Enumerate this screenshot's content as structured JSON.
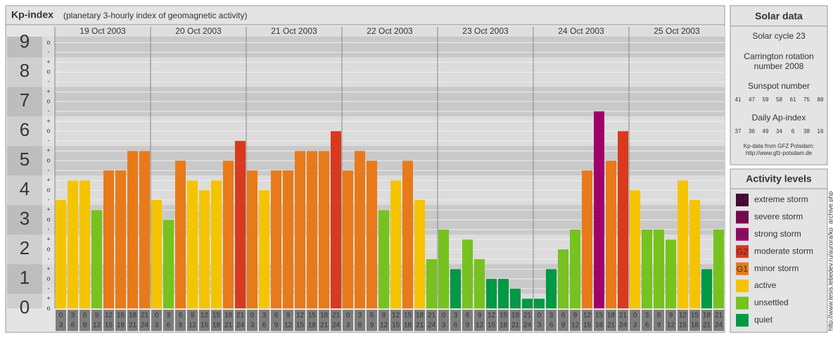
{
  "chart_data": {
    "type": "bar",
    "title": "Kp-index",
    "subtitle": "(planetary 3-hourly index of geomagnetic activity)",
    "ylim": [
      0,
      9.2
    ],
    "yticks": [
      0,
      1,
      2,
      3,
      4,
      5,
      6,
      7,
      8,
      9
    ],
    "minor_ticks": [
      {
        "value": 0,
        "label": "o"
      },
      {
        "value": 0.33,
        "label": "+"
      },
      {
        "value": 0.67,
        "label": "-"
      },
      {
        "value": 1,
        "label": "o"
      },
      {
        "value": 1.33,
        "label": "+"
      },
      {
        "value": 1.67,
        "label": "-"
      },
      {
        "value": 2,
        "label": "o"
      },
      {
        "value": 2.33,
        "label": "+"
      },
      {
        "value": 2.67,
        "label": "-"
      },
      {
        "value": 3,
        "label": "o"
      },
      {
        "value": 3.33,
        "label": "+"
      },
      {
        "value": 3.67,
        "label": "-"
      },
      {
        "value": 4,
        "label": "o"
      },
      {
        "value": 4.33,
        "label": "+"
      },
      {
        "value": 4.67,
        "label": "-"
      },
      {
        "value": 5,
        "label": "o"
      },
      {
        "value": 5.33,
        "label": "+"
      },
      {
        "value": 5.67,
        "label": "-"
      },
      {
        "value": 6,
        "label": "o"
      },
      {
        "value": 6.33,
        "label": "+"
      },
      {
        "value": 6.67,
        "label": "-"
      },
      {
        "value": 7,
        "label": "o"
      },
      {
        "value": 7.33,
        "label": "+"
      },
      {
        "value": 7.67,
        "label": "-"
      },
      {
        "value": 8,
        "label": "o"
      },
      {
        "value": 8.33,
        "label": "+"
      },
      {
        "value": 8.67,
        "label": "-"
      },
      {
        "value": 9,
        "label": "o"
      }
    ],
    "hours": [
      [
        "0",
        "3"
      ],
      [
        "3",
        "6"
      ],
      [
        "6",
        "9"
      ],
      [
        "9",
        "12"
      ],
      [
        "12",
        "15"
      ],
      [
        "15",
        "18"
      ],
      [
        "18",
        "21"
      ],
      [
        "21",
        "24"
      ]
    ],
    "days": [
      {
        "label": "19 Oct 2003",
        "values": [
          3.67,
          4.33,
          4.33,
          3.33,
          4.67,
          4.67,
          5.33,
          5.33
        ],
        "colors": [
          "#f5c400",
          "#f5c400",
          "#f5c400",
          "#76c21f",
          "#e87a1a",
          "#e87a1a",
          "#e87a1a",
          "#e87a1a"
        ]
      },
      {
        "label": "20 Oct 2003",
        "values": [
          3.67,
          3.0,
          5.0,
          4.33,
          4.0,
          4.33,
          5.0,
          5.67
        ],
        "colors": [
          "#f5c400",
          "#76c21f",
          "#e87a1a",
          "#f5c400",
          "#f5c400",
          "#f5c400",
          "#e87a1a",
          "#d93a1e"
        ]
      },
      {
        "label": "21 Oct 2003",
        "values": [
          4.67,
          4.0,
          4.67,
          4.67,
          5.33,
          5.33,
          5.33,
          6.0
        ],
        "colors": [
          "#e87a1a",
          "#f5c400",
          "#e87a1a",
          "#e87a1a",
          "#e87a1a",
          "#e87a1a",
          "#e87a1a",
          "#d93a1e"
        ]
      },
      {
        "label": "22 Oct 2003",
        "values": [
          4.67,
          5.33,
          5.0,
          3.33,
          4.33,
          5.0,
          3.67,
          1.67
        ],
        "colors": [
          "#e87a1a",
          "#e87a1a",
          "#e87a1a",
          "#76c21f",
          "#f5c400",
          "#e87a1a",
          "#f5c400",
          "#76c21f"
        ]
      },
      {
        "label": "23 Oct 2003",
        "values": [
          2.67,
          1.33,
          2.33,
          1.67,
          1.0,
          1.0,
          0.67,
          0.33
        ],
        "colors": [
          "#76c21f",
          "#009944",
          "#76c21f",
          "#76c21f",
          "#009944",
          "#009944",
          "#009944",
          "#009944"
        ]
      },
      {
        "label": "24 Oct 2003",
        "values": [
          0.33,
          1.33,
          2.0,
          2.67,
          4.67,
          6.67,
          5.0,
          6.0
        ],
        "colors": [
          "#009944",
          "#009944",
          "#76c21f",
          "#76c21f",
          "#e87a1a",
          "#a0006a",
          "#e87a1a",
          "#d93a1e"
        ]
      },
      {
        "label": "25 Oct 2003",
        "values": [
          4.0,
          2.67,
          2.67,
          2.33,
          4.33,
          3.67,
          1.33,
          2.67
        ],
        "colors": [
          "#f5c400",
          "#76c21f",
          "#76c21f",
          "#76c21f",
          "#f5c400",
          "#f5c400",
          "#009944",
          "#76c21f"
        ]
      }
    ]
  },
  "solar_data": {
    "title": "Solar data",
    "cycle": "Solar cycle 23",
    "carrington": [
      "Carrington rotation",
      "number 2008"
    ],
    "sunspot_title": "Sunspot number",
    "sunspot": [
      41,
      47,
      59,
      58,
      61,
      75,
      88
    ],
    "ap_title": "Daily Ap-index",
    "ap": [
      37,
      36,
      49,
      34,
      6,
      38,
      16
    ],
    "source": [
      "Kp-data from GFZ Potsdam:",
      "http://www.gfz-potsdam.de"
    ]
  },
  "activity_levels": {
    "title": "Activity levels",
    "items": [
      {
        "code": "G5",
        "name": "extreme storm",
        "color": "#4a0030"
      },
      {
        "code": "G4",
        "name": "severe storm",
        "color": "#800050"
      },
      {
        "code": "G3",
        "name": "strong storm",
        "color": "#a0006a"
      },
      {
        "code": "G2",
        "name": "moderate storm",
        "color": "#d93a1e"
      },
      {
        "code": "G1",
        "name": "minor storm",
        "color": "#e87a1a"
      },
      {
        "name": "active",
        "color": "#f5c400"
      },
      {
        "name": "unsettled",
        "color": "#76c21f"
      },
      {
        "name": "quiet",
        "color": "#009944"
      }
    ]
  },
  "watermark": "http://www.tesis.lebedev.ru/aurora/kp_archive.php"
}
